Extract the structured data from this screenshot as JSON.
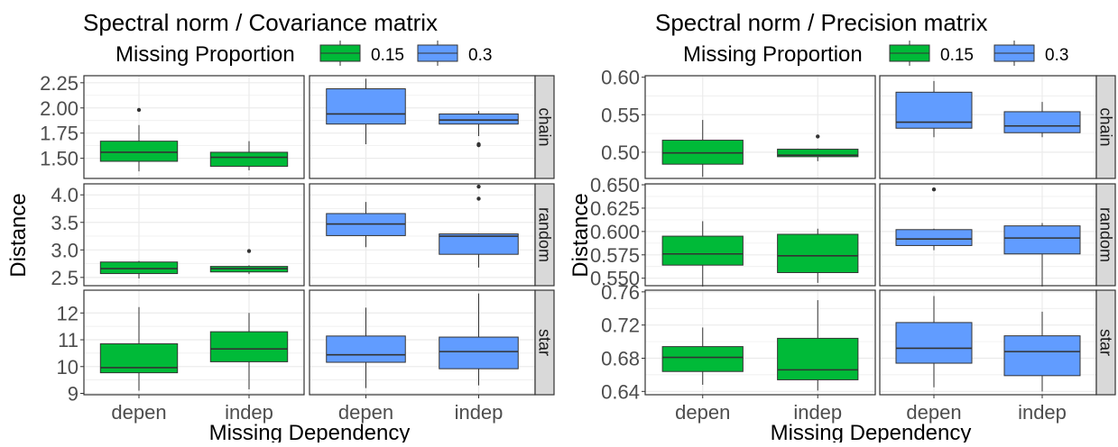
{
  "colors": {
    "prop_015": "#00BA38",
    "prop_03": "#619CFF",
    "strip_bg": "#D9D9D9",
    "grid": "#EBEBEB",
    "panel_border": "#333333",
    "text": "#1A1A1A",
    "tick_text": "#4D4D4D"
  },
  "chart_data": [
    {
      "type": "box",
      "title": "Spectral norm / Covariance matrix",
      "legend": {
        "title": "Missing Proportion",
        "position": "top",
        "entries": [
          "0.15",
          "0.3"
        ]
      },
      "xlabel": "Missing Dependency",
      "ylabel": "Distance",
      "categories": [
        "depen",
        "indep"
      ],
      "facet_cols": [
        "0.15",
        "0.3"
      ],
      "grid": true,
      "rows": [
        {
          "strip": "chain",
          "ylim": [
            1.3,
            2.32
          ],
          "yticks": [
            {
              "v": 1.5,
              "label": "1.50"
            },
            {
              "v": 1.75,
              "label": "1.75"
            },
            {
              "v": 2.0,
              "label": "2.00"
            },
            {
              "v": 2.25,
              "label": "2.25"
            }
          ],
          "boxes": [
            {
              "col": 0,
              "cat": 0,
              "min": 1.37,
              "q1": 1.47,
              "median": 1.56,
              "q3": 1.67,
              "max": 1.83,
              "outliers": [
                1.98
              ]
            },
            {
              "col": 0,
              "cat": 1,
              "min": 1.38,
              "q1": 1.42,
              "median": 1.51,
              "q3": 1.56,
              "max": 1.67,
              "outliers": []
            },
            {
              "col": 1,
              "cat": 0,
              "min": 1.64,
              "q1": 1.84,
              "median": 1.94,
              "q3": 2.19,
              "max": 2.29,
              "outliers": []
            },
            {
              "col": 1,
              "cat": 1,
              "min": 1.72,
              "q1": 1.84,
              "median": 1.88,
              "q3": 1.94,
              "max": 1.97,
              "outliers": [
                1.63,
                1.64
              ]
            }
          ]
        },
        {
          "strip": "random",
          "ylim": [
            2.35,
            4.2
          ],
          "yticks": [
            {
              "v": 2.5,
              "label": "2.5"
            },
            {
              "v": 3.0,
              "label": "3.0"
            },
            {
              "v": 3.5,
              "label": "3.5"
            },
            {
              "v": 4.0,
              "label": "4.0"
            }
          ],
          "boxes": [
            {
              "col": 0,
              "cat": 0,
              "min": 2.48,
              "q1": 2.57,
              "median": 2.66,
              "q3": 2.78,
              "max": 2.8,
              "outliers": []
            },
            {
              "col": 0,
              "cat": 1,
              "min": 2.56,
              "q1": 2.6,
              "median": 2.66,
              "q3": 2.7,
              "max": 2.72,
              "outliers": [
                2.98
              ]
            },
            {
              "col": 1,
              "cat": 0,
              "min": 3.05,
              "q1": 3.26,
              "median": 3.47,
              "q3": 3.66,
              "max": 3.87,
              "outliers": []
            },
            {
              "col": 1,
              "cat": 1,
              "min": 2.68,
              "q1": 2.92,
              "median": 3.25,
              "q3": 3.29,
              "max": 3.3,
              "outliers": [
                3.93,
                4.15
              ]
            }
          ]
        },
        {
          "strip": "star",
          "ylim": [
            8.95,
            12.85
          ],
          "yticks": [
            {
              "v": 9,
              "label": "9"
            },
            {
              "v": 10,
              "label": "10"
            },
            {
              "v": 11,
              "label": "11"
            },
            {
              "v": 12,
              "label": "12"
            }
          ],
          "boxes": [
            {
              "col": 0,
              "cat": 0,
              "min": 9.1,
              "q1": 9.77,
              "median": 9.96,
              "q3": 10.85,
              "max": 12.22,
              "outliers": []
            },
            {
              "col": 0,
              "cat": 1,
              "min": 9.15,
              "q1": 10.18,
              "median": 10.66,
              "q3": 11.3,
              "max": 12.0,
              "outliers": []
            },
            {
              "col": 1,
              "cat": 0,
              "min": 9.2,
              "q1": 10.16,
              "median": 10.44,
              "q3": 11.14,
              "max": 12.2,
              "outliers": []
            },
            {
              "col": 1,
              "cat": 1,
              "min": 9.3,
              "q1": 9.92,
              "median": 10.56,
              "q3": 11.1,
              "max": 12.73,
              "outliers": []
            }
          ]
        }
      ]
    },
    {
      "type": "box",
      "title": "Spectral norm / Precision matrix",
      "legend": {
        "title": "Missing Proportion",
        "position": "top",
        "entries": [
          "0.15",
          "0.3"
        ]
      },
      "xlabel": "Missing Dependency",
      "ylabel": "Distance",
      "categories": [
        "depen",
        "indep"
      ],
      "facet_cols": [
        "0.15",
        "0.3"
      ],
      "grid": true,
      "rows": [
        {
          "strip": "chain",
          "ylim": [
            0.465,
            0.602
          ],
          "yticks": [
            {
              "v": 0.5,
              "label": "0.50"
            },
            {
              "v": 0.55,
              "label": "0.55"
            },
            {
              "v": 0.6,
              "label": "0.60"
            }
          ],
          "boxes": [
            {
              "col": 0,
              "cat": 0,
              "min": 0.467,
              "q1": 0.484,
              "median": 0.499,
              "q3": 0.516,
              "max": 0.543,
              "outliers": []
            },
            {
              "col": 0,
              "cat": 1,
              "min": 0.488,
              "q1": 0.494,
              "median": 0.496,
              "q3": 0.504,
              "max": 0.505,
              "outliers": [
                0.521
              ]
            },
            {
              "col": 1,
              "cat": 0,
              "min": 0.52,
              "q1": 0.532,
              "median": 0.54,
              "q3": 0.58,
              "max": 0.595,
              "outliers": []
            },
            {
              "col": 1,
              "cat": 1,
              "min": 0.52,
              "q1": 0.526,
              "median": 0.535,
              "q3": 0.554,
              "max": 0.567,
              "outliers": []
            }
          ]
        },
        {
          "strip": "random",
          "ylim": [
            0.542,
            0.651
          ],
          "yticks": [
            {
              "v": 0.55,
              "label": "0.550"
            },
            {
              "v": 0.575,
              "label": "0.575"
            },
            {
              "v": 0.6,
              "label": "0.600"
            },
            {
              "v": 0.625,
              "label": "0.625"
            },
            {
              "v": 0.65,
              "label": "0.650"
            }
          ],
          "boxes": [
            {
              "col": 0,
              "cat": 0,
              "min": 0.541,
              "q1": 0.564,
              "median": 0.576,
              "q3": 0.595,
              "max": 0.611,
              "outliers": []
            },
            {
              "col": 0,
              "cat": 1,
              "min": 0.545,
              "q1": 0.556,
              "median": 0.574,
              "q3": 0.597,
              "max": 0.603,
              "outliers": []
            },
            {
              "col": 1,
              "cat": 0,
              "min": 0.58,
              "q1": 0.585,
              "median": 0.592,
              "q3": 0.602,
              "max": 0.603,
              "outliers": [
                0.645
              ]
            },
            {
              "col": 1,
              "cat": 1,
              "min": 0.541,
              "q1": 0.576,
              "median": 0.593,
              "q3": 0.606,
              "max": 0.609,
              "outliers": []
            }
          ]
        },
        {
          "strip": "star",
          "ylim": [
            0.636,
            0.762
          ],
          "yticks": [
            {
              "v": 0.64,
              "label": "0.64"
            },
            {
              "v": 0.68,
              "label": "0.68"
            },
            {
              "v": 0.72,
              "label": "0.72"
            },
            {
              "v": 0.76,
              "label": "0.76"
            }
          ],
          "boxes": [
            {
              "col": 0,
              "cat": 0,
              "min": 0.648,
              "q1": 0.664,
              "median": 0.681,
              "q3": 0.694,
              "max": 0.717,
              "outliers": []
            },
            {
              "col": 0,
              "cat": 1,
              "min": 0.641,
              "q1": 0.654,
              "median": 0.666,
              "q3": 0.704,
              "max": 0.75,
              "outliers": []
            },
            {
              "col": 1,
              "cat": 0,
              "min": 0.645,
              "q1": 0.674,
              "median": 0.692,
              "q3": 0.723,
              "max": 0.755,
              "outliers": []
            },
            {
              "col": 1,
              "cat": 1,
              "min": 0.64,
              "q1": 0.659,
              "median": 0.688,
              "q3": 0.707,
              "max": 0.736,
              "outliers": []
            }
          ]
        }
      ]
    }
  ]
}
